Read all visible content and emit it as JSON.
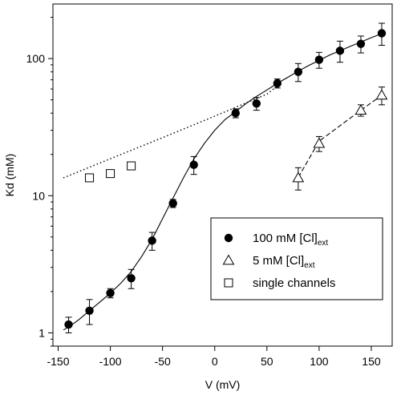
{
  "chart_data": {
    "type": "scatter",
    "title": "",
    "xlabel": "V (mV)",
    "ylabel": "Kd (mM)",
    "xlim": [
      -155,
      170
    ],
    "ylim": [
      0.8,
      250
    ],
    "yscale": "log",
    "x_ticks": [
      -150,
      -100,
      -50,
      0,
      50,
      100,
      150
    ],
    "y_ticks": [
      1,
      10,
      100
    ],
    "legend_position": "lower-right",
    "series": [
      {
        "name": "100 mM [Cl]ext",
        "label_main": "100 mM [Cl]",
        "label_sub": "ext",
        "marker": "filled-circle",
        "x": [
          -140,
          -120,
          -100,
          -80,
          -60,
          -40,
          -20,
          20,
          40,
          60,
          80,
          100,
          120,
          140,
          160
        ],
        "y": [
          1.15,
          1.45,
          1.95,
          2.5,
          4.7,
          8.8,
          16.8,
          40,
          47,
          66,
          80,
          98,
          114,
          128,
          153
        ],
        "err": [
          0.15,
          0.3,
          0.15,
          0.4,
          0.7,
          0.6,
          2.5,
          3,
          5,
          5,
          12,
          13,
          20,
          18,
          28
        ]
      },
      {
        "name": "5 mM [Cl]ext",
        "label_main": "5 mM [Cl]",
        "label_sub": "ext",
        "marker": "open-triangle",
        "x": [
          80,
          100,
          140,
          160
        ],
        "y": [
          13.5,
          24,
          42,
          54
        ],
        "err": [
          2.5,
          3,
          4,
          8
        ]
      },
      {
        "name": "single channels",
        "label_main": "single channels",
        "label_sub": "",
        "marker": "open-square",
        "x": [
          -120,
          -100,
          -80
        ],
        "y": [
          13.5,
          14.5,
          16.5
        ],
        "err": [
          0,
          0,
          0
        ]
      }
    ],
    "fit_curves": [
      {
        "style": "solid",
        "x": [
          -145,
          -140,
          -130,
          -120,
          -110,
          -100,
          -90,
          -80,
          -70,
          -60,
          -50,
          -40,
          -30,
          -20,
          -10,
          0,
          10,
          20,
          30,
          40,
          50,
          60,
          70,
          80,
          90,
          100,
          110,
          120,
          130,
          140,
          150,
          160
        ],
        "y": [
          1.05,
          1.1,
          1.25,
          1.45,
          1.68,
          1.95,
          2.3,
          2.8,
          3.6,
          4.8,
          6.8,
          9.6,
          13.5,
          18.5,
          24,
          30,
          36,
          41,
          47,
          53,
          59,
          66,
          73,
          81,
          89,
          97,
          106,
          114,
          123,
          132,
          142,
          152
        ]
      },
      {
        "style": "dotted",
        "x": [
          -145,
          -100,
          -50,
          0,
          50,
          60
        ],
        "y": [
          13.5,
          18.6,
          26.5,
          38,
          55,
          63
        ]
      },
      {
        "style": "dashed",
        "x": [
          80,
          100,
          140,
          160
        ],
        "y": [
          13.6,
          25,
          42,
          54
        ]
      }
    ]
  }
}
